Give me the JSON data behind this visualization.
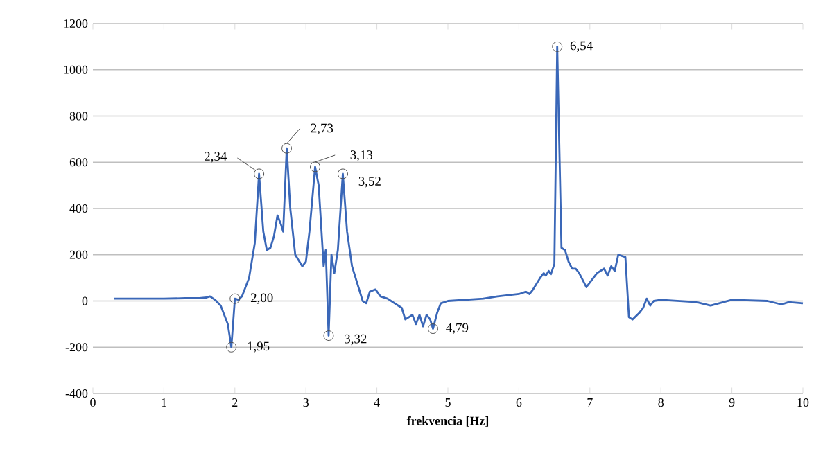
{
  "chart_data": {
    "type": "line",
    "xlabel": "frekvencia [Hz]",
    "xlim": [
      0,
      10
    ],
    "xticks": [
      0,
      1,
      2,
      3,
      4,
      5,
      6,
      7,
      8,
      9,
      10
    ],
    "ylim": [
      -400,
      1200
    ],
    "yticks": [
      -400,
      -200,
      0,
      200,
      400,
      600,
      800,
      1000,
      1200
    ],
    "grid": "y",
    "marker": "none",
    "line_style": "solid",
    "series": [
      {
        "color": "#3a67b8",
        "x": [
          0.3,
          0.6,
          1.0,
          1.3,
          1.5,
          1.6,
          1.65,
          1.72,
          1.8,
          1.85,
          1.9,
          1.95,
          2.0,
          2.05,
          2.1,
          2.2,
          2.28,
          2.34,
          2.4,
          2.45,
          2.5,
          2.55,
          2.6,
          2.65,
          2.68,
          2.73,
          2.78,
          2.85,
          2.95,
          3.0,
          3.05,
          3.13,
          3.18,
          3.25,
          3.28,
          3.32,
          3.36,
          3.4,
          3.45,
          3.52,
          3.58,
          3.65,
          3.7,
          3.8,
          3.85,
          3.9,
          3.98,
          4.05,
          4.15,
          4.25,
          4.35,
          4.4,
          4.45,
          4.5,
          4.55,
          4.6,
          4.65,
          4.7,
          4.75,
          4.79,
          4.85,
          4.9,
          5.0,
          5.5,
          5.7,
          6.0,
          6.1,
          6.15,
          6.2,
          6.3,
          6.35,
          6.38,
          6.42,
          6.45,
          6.5,
          6.54,
          6.6,
          6.65,
          6.7,
          6.75,
          6.8,
          6.85,
          6.95,
          7.0,
          7.1,
          7.2,
          7.25,
          7.3,
          7.35,
          7.4,
          7.5,
          7.55,
          7.6,
          7.7,
          7.75,
          7.8,
          7.85,
          7.9,
          8.0,
          8.5,
          8.7,
          9.0,
          9.5,
          9.7,
          9.8,
          10.0
        ],
        "values": [
          10,
          10,
          10,
          12,
          12,
          15,
          20,
          5,
          -20,
          -60,
          -100,
          -200,
          10,
          5,
          20,
          100,
          250,
          550,
          300,
          220,
          230,
          280,
          370,
          330,
          300,
          660,
          400,
          200,
          150,
          170,
          300,
          580,
          500,
          150,
          220,
          -150,
          200,
          120,
          220,
          550,
          300,
          150,
          100,
          0,
          -10,
          40,
          50,
          20,
          10,
          -10,
          -30,
          -80,
          -70,
          -60,
          -100,
          -60,
          -110,
          -60,
          -80,
          -120,
          -50,
          -10,
          0,
          10,
          20,
          30,
          40,
          30,
          50,
          100,
          120,
          110,
          130,
          115,
          160,
          1100,
          230,
          220,
          170,
          140,
          140,
          120,
          60,
          80,
          120,
          140,
          110,
          150,
          130,
          200,
          190,
          -70,
          -80,
          -50,
          -30,
          10,
          -20,
          0,
          5,
          -5,
          -20,
          5,
          0,
          -15,
          -5,
          -10
        ]
      }
    ],
    "annotations": [
      {
        "text": "1,95",
        "x": 1.95,
        "y": -200
      },
      {
        "text": "2,00",
        "x": 2.0,
        "y": 10
      },
      {
        "text": "2,34",
        "x": 2.34,
        "y": 550
      },
      {
        "text": "2,73",
        "x": 2.73,
        "y": 660
      },
      {
        "text": "3,13",
        "x": 3.13,
        "y": 580
      },
      {
        "text": "3,32",
        "x": 3.32,
        "y": -150
      },
      {
        "text": "3,52",
        "x": 3.52,
        "y": 550
      },
      {
        "text": "4,79",
        "x": 4.79,
        "y": -120
      },
      {
        "text": "6,54",
        "x": 6.54,
        "y": 1100
      }
    ]
  }
}
